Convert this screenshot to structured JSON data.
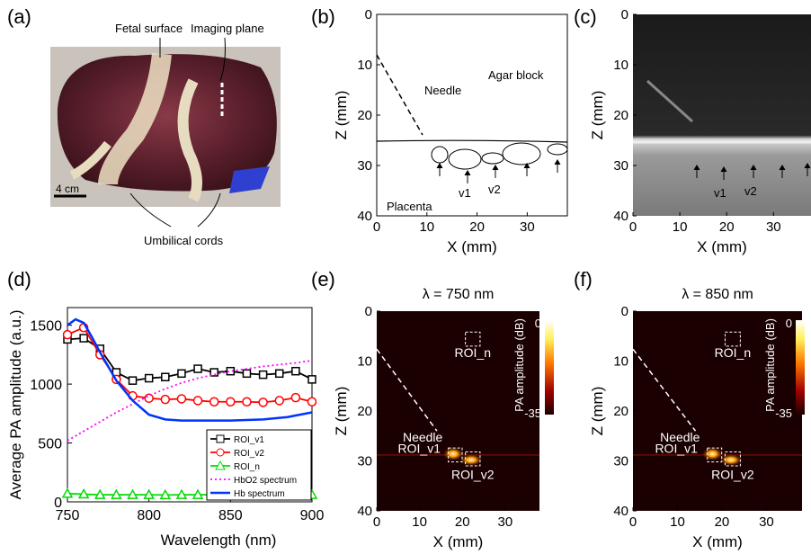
{
  "panels": {
    "a": "(a)",
    "b": "(b)",
    "c": "(c)",
    "d": "(d)",
    "e": "(e)",
    "f": "(f)"
  },
  "photo": {
    "fetal_surface": "Fetal surface",
    "imaging_plane": "Imaging plane",
    "scale_bar": "4 cm",
    "umbilical_cords": "Umbilical cords"
  },
  "schematic": {
    "needle": "Needle",
    "agar": "Agar block",
    "placenta": "Placenta",
    "v1": "v1",
    "v2": "v2"
  },
  "ultrasound": {
    "v1": "v1",
    "v2": "v2"
  },
  "images": {
    "e_title": "λ = 750 nm",
    "f_title": "λ = 850 nm",
    "needle": "Needle",
    "roi_n": "ROI_n",
    "roi_v1": "ROI_v1",
    "roi_v2": "ROI_v2",
    "colorbar_label": "PA amplitude (dB)",
    "cb_top": "0",
    "cb_bottom": "-35"
  },
  "axes": {
    "xlabel": "X (mm)",
    "zlabel": "Z (mm)",
    "x_ticks": [
      "0",
      "10",
      "20",
      "30"
    ],
    "z_ticks": [
      "0",
      "10",
      "20",
      "30",
      "40"
    ]
  },
  "chart_data": {
    "type": "line",
    "xlabel": "Wavelength (nm)",
    "ylabel": "Average PA amplitude (a.u.)",
    "xlim": [
      750,
      900
    ],
    "ylim": [
      0,
      1650
    ],
    "x_ticks": [
      750,
      800,
      850,
      900
    ],
    "y_ticks": [
      0,
      500,
      1000,
      1500
    ],
    "series": [
      {
        "name": "ROI_v1",
        "color": "#000000",
        "marker": "square",
        "x": [
          750,
          760,
          770,
          780,
          790,
          800,
          810,
          820,
          830,
          840,
          850,
          860,
          870,
          880,
          890,
          900
        ],
        "y": [
          1380,
          1390,
          1300,
          1100,
          1030,
          1050,
          1060,
          1090,
          1130,
          1100,
          1110,
          1090,
          1080,
          1090,
          1110,
          1040
        ]
      },
      {
        "name": "ROI_v2",
        "color": "#ff0000",
        "marker": "circle",
        "x": [
          750,
          760,
          770,
          780,
          790,
          800,
          810,
          820,
          830,
          840,
          850,
          860,
          870,
          880,
          890,
          900
        ],
        "y": [
          1420,
          1480,
          1250,
          1040,
          900,
          880,
          870,
          875,
          860,
          850,
          850,
          850,
          845,
          860,
          885,
          850
        ]
      },
      {
        "name": "ROI_n",
        "color": "#00dd00",
        "marker": "triangle",
        "x": [
          750,
          760,
          770,
          780,
          790,
          800,
          810,
          820,
          830,
          840,
          850,
          860,
          870,
          880,
          890,
          900
        ],
        "y": [
          70,
          65,
          60,
          60,
          60,
          60,
          58,
          60,
          60,
          60,
          60,
          60,
          58,
          60,
          60,
          60
        ]
      },
      {
        "name": "HbO2 spectrum",
        "color": "#ff00ff",
        "style": "dotted",
        "x": [
          750,
          760,
          770,
          780,
          790,
          800,
          810,
          820,
          830,
          840,
          850,
          860,
          870,
          880,
          890,
          900
        ],
        "y": [
          520,
          600,
          680,
          760,
          830,
          900,
          960,
          1010,
          1050,
          1080,
          1110,
          1130,
          1150,
          1165,
          1180,
          1200
        ]
      },
      {
        "name": "Hb spectrum",
        "color": "#0033ff",
        "style": "solid",
        "x": [
          750,
          755,
          760,
          765,
          770,
          780,
          790,
          800,
          810,
          820,
          830,
          850,
          870,
          885,
          900
        ],
        "y": [
          1500,
          1550,
          1520,
          1400,
          1270,
          1030,
          860,
          740,
          700,
          690,
          690,
          690,
          700,
          720,
          760
        ]
      }
    ],
    "legend_position": "bottom-right"
  }
}
